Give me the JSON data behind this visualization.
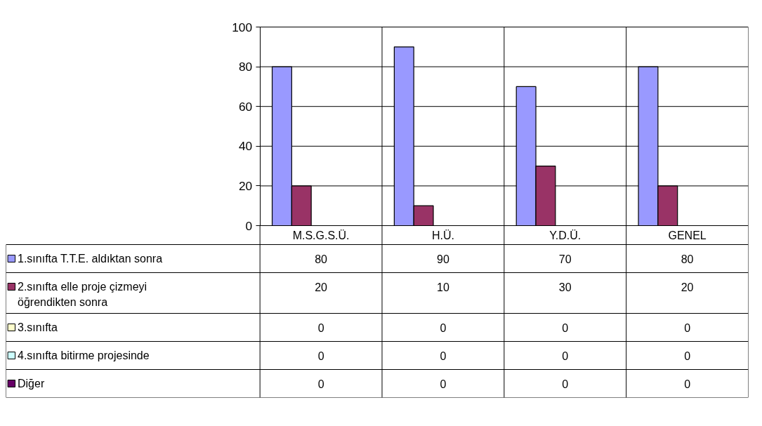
{
  "chart_data": {
    "type": "bar",
    "categories": [
      "M.S.G.S.Ü.",
      "H.Ü.",
      "Y.D.Ü.",
      "GENEL"
    ],
    "series": [
      {
        "name": "1.sınıfta T.T.E. aldıktan sonra",
        "color": "#9999ff",
        "values": [
          80,
          90,
          70,
          80
        ]
      },
      {
        "name": "2.sınıfta elle proje çizmeyi öğrendikten sonra",
        "color": "#993366",
        "values": [
          20,
          10,
          30,
          20
        ]
      },
      {
        "name": "3.sınıfta",
        "color": "#ffffcc",
        "values": [
          0,
          0,
          0,
          0
        ]
      },
      {
        "name": "4.sınıfta bitirme projesinde",
        "color": "#ccffff",
        "values": [
          0,
          0,
          0,
          0
        ]
      },
      {
        "name": "Diğer",
        "color": "#660066",
        "values": [
          0,
          0,
          0,
          0
        ]
      }
    ],
    "ylim": [
      0,
      100
    ],
    "yticks": [
      0,
      20,
      40,
      60,
      80,
      100
    ],
    "grid": "y",
    "legend": "bottom left",
    "data_labels": true
  }
}
